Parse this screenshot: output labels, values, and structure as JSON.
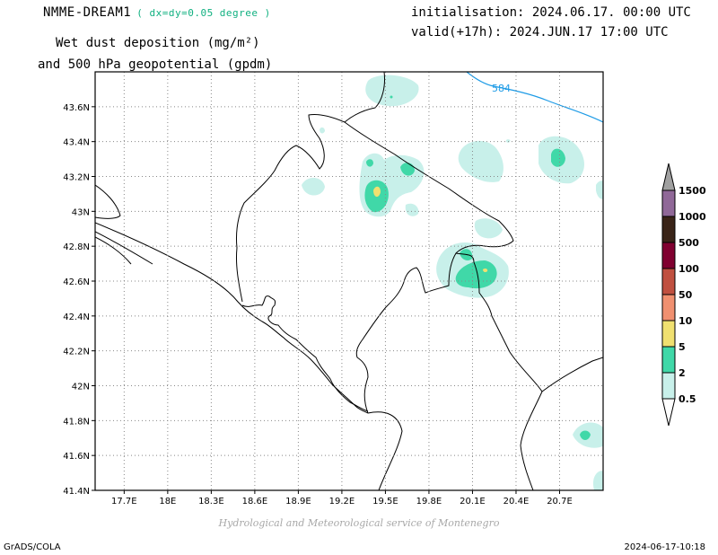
{
  "header": {
    "model": "NMME-DREAM1",
    "resolution": "( dx=dy=0.05 degree )",
    "product_line1": "Wet dust deposition (mg/m²)",
    "product_line2": "and 500 hPa geopotential (gpdm)",
    "init": "initialisation: 2024.06.17. 00:00 UTC",
    "valid": "valid(+17h): 2024.JUN.17 17:00 UTC"
  },
  "map": {
    "lon_range": [
      17.5,
      21.0
    ],
    "lat_range": [
      41.4,
      43.8
    ],
    "lon_ticks": [
      "17.7E",
      "18E",
      "18.3E",
      "18.6E",
      "18.9E",
      "19.2E",
      "19.5E",
      "19.8E",
      "20.1E",
      "20.4E",
      "20.7E"
    ],
    "lat_ticks": [
      "41.4N",
      "41.6N",
      "41.8N",
      "42N",
      "42.2N",
      "42.4N",
      "42.6N",
      "42.8N",
      "43N",
      "43.2N",
      "43.4N",
      "43.6N"
    ],
    "grid": true,
    "contour_label": "584",
    "contour_color": "#1e9be6"
  },
  "legend": {
    "levels": [
      "0.5",
      "2",
      "5",
      "10",
      "50",
      "100",
      "500",
      "1000",
      "1500"
    ],
    "colors": [
      "#c8f0ea",
      "#40d8a8",
      "#f0e070",
      "#f09070",
      "#c05040",
      "#800030",
      "#3a2418",
      "#906898",
      "#a0a0a0"
    ]
  },
  "footer": {
    "credit": "Hydrological and Meteorological service of Montenegro",
    "software": "GrADS/COLA",
    "timestamp": "2024-06-17-10:18"
  }
}
